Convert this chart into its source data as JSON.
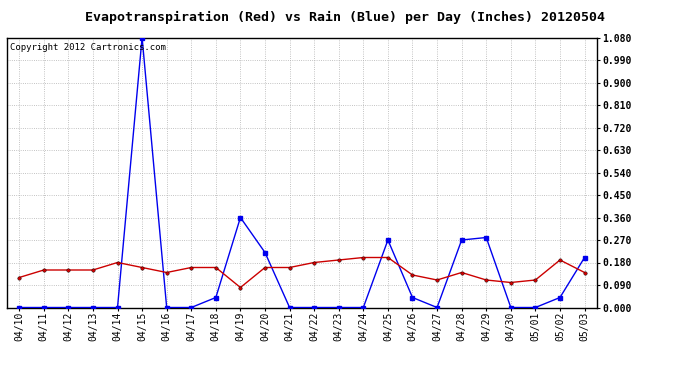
{
  "title": "Evapotranspiration (Red) vs Rain (Blue) per Day (Inches) 20120504",
  "copyright_text": "Copyright 2012 Cartronics.com",
  "x_labels": [
    "04/10",
    "04/11",
    "04/12",
    "04/13",
    "04/14",
    "04/15",
    "04/16",
    "04/17",
    "04/18",
    "04/19",
    "04/20",
    "04/21",
    "04/22",
    "04/23",
    "04/24",
    "04/25",
    "04/26",
    "04/27",
    "04/28",
    "04/29",
    "04/30",
    "05/01",
    "05/02",
    "05/03"
  ],
  "rain_blue": [
    0.0,
    0.0,
    0.0,
    0.0,
    0.0,
    1.08,
    0.0,
    0.0,
    0.04,
    0.36,
    0.22,
    0.0,
    0.0,
    0.0,
    0.0,
    0.27,
    0.04,
    0.0,
    0.27,
    0.28,
    0.0,
    0.0,
    0.04,
    0.2
  ],
  "et_red": [
    0.12,
    0.15,
    0.15,
    0.15,
    0.18,
    0.16,
    0.14,
    0.16,
    0.16,
    0.08,
    0.16,
    0.16,
    0.18,
    0.19,
    0.2,
    0.2,
    0.13,
    0.11,
    0.14,
    0.11,
    0.1,
    0.11,
    0.19,
    0.14
  ],
  "ylim": [
    0.0,
    1.08
  ],
  "yticks": [
    0.0,
    0.09,
    0.18,
    0.27,
    0.36,
    0.45,
    0.54,
    0.63,
    0.72,
    0.81,
    0.9,
    0.99,
    1.08
  ],
  "blue_color": "#0000ee",
  "red_color": "#cc0000",
  "bg_color": "#ffffff",
  "grid_color": "#b0b0b0",
  "title_fontsize": 9.5,
  "tick_fontsize": 7,
  "copyright_fontsize": 6.5
}
